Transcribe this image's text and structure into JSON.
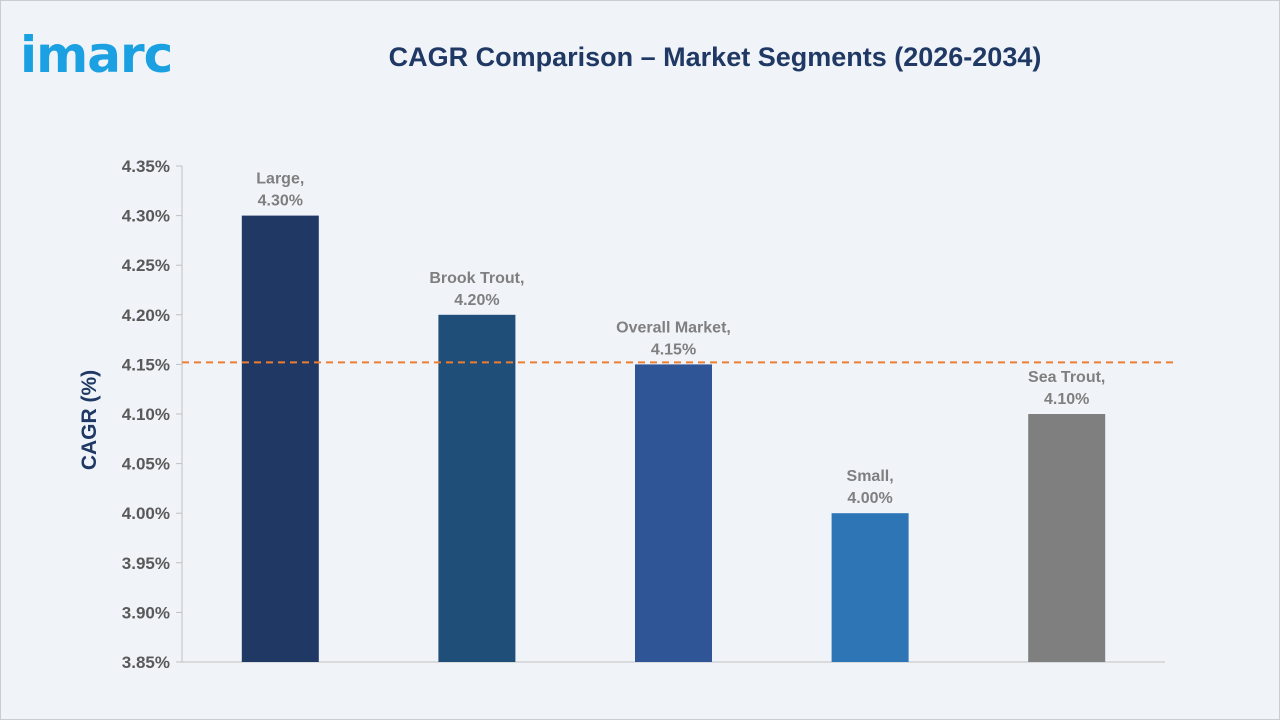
{
  "brand": {
    "logo_text": "imarc",
    "logo_color": "#1ba1e2"
  },
  "chart_data": {
    "type": "bar",
    "title": "CAGR Comparison – Market Segments (2026-2034)",
    "ylabel": "CAGR (%)",
    "xlabel": "",
    "ylim": [
      3.85,
      4.35
    ],
    "ytick_step": 0.05,
    "y_unit_suffix": "%",
    "categories": [
      "Large",
      "Brook Trout",
      "Overall Market",
      "Small",
      "Sea Trout"
    ],
    "values": [
      4.3,
      4.2,
      4.15,
      4.0,
      4.1
    ],
    "data_labels": [
      "4.30%",
      "4.20%",
      "4.15%",
      "4.00%",
      "4.10%"
    ],
    "bar_colors": [
      "#203864",
      "#1f4e79",
      "#2f5597",
      "#2e75b6",
      "#7f7f7f"
    ],
    "reference_line": {
      "value": 4.15,
      "color": "#ed7d31",
      "style": "dashed"
    },
    "grid": false,
    "legend": "none"
  }
}
